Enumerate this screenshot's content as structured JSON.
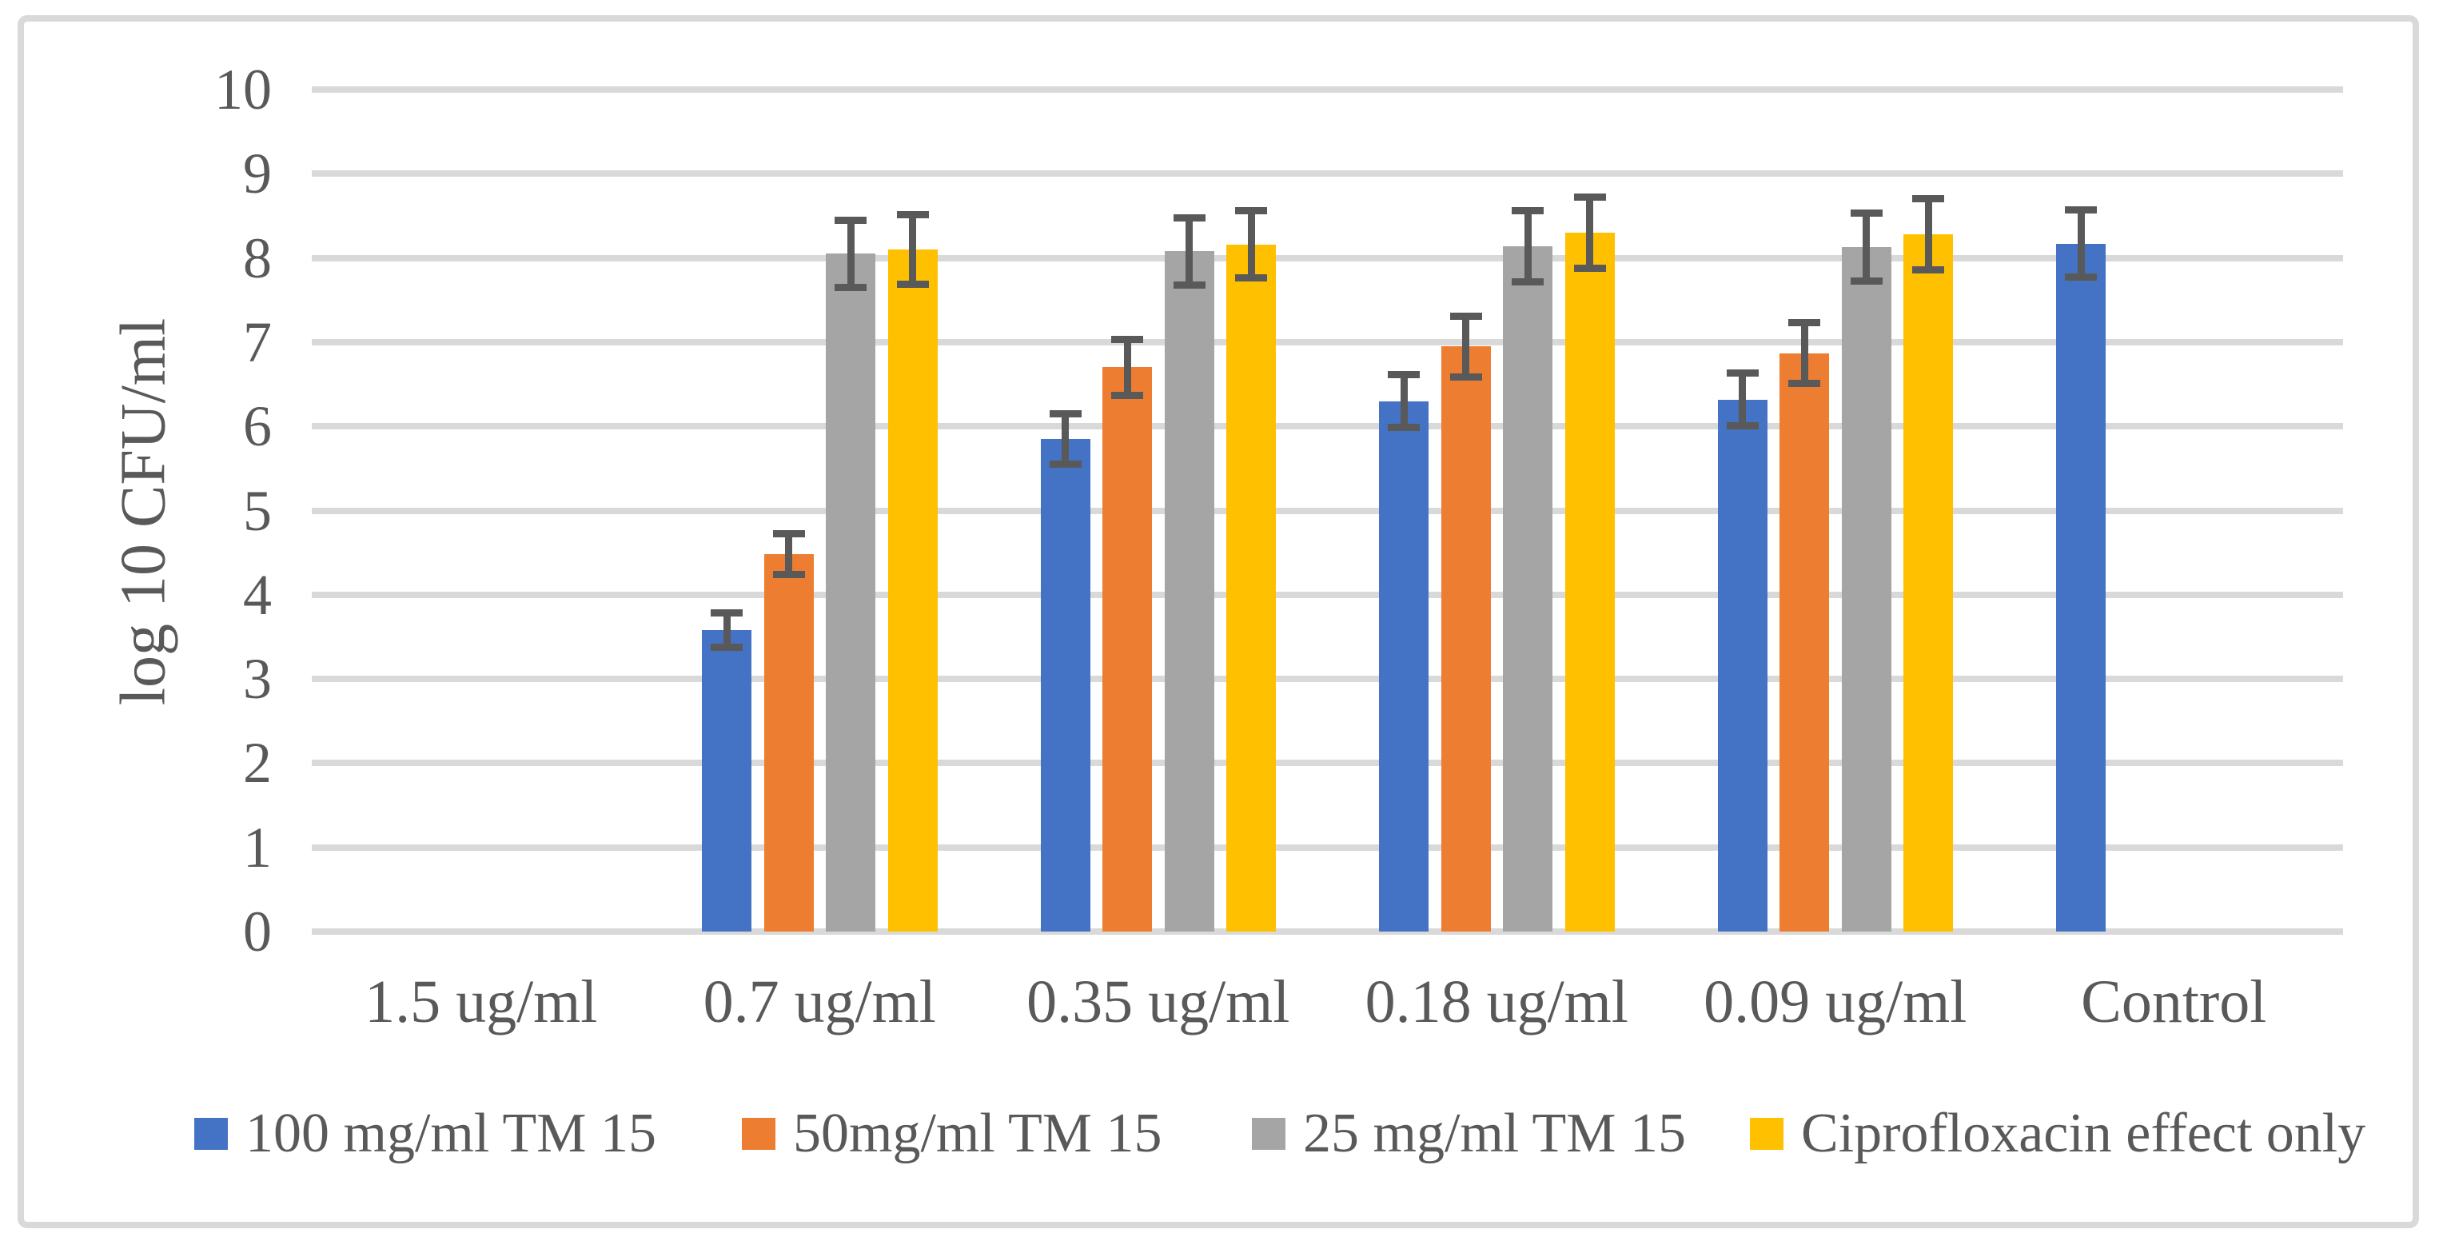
{
  "chart_data": {
    "type": "bar",
    "title": "",
    "ylabel": "log 10 CFU/ml",
    "xlabel": "",
    "ylim": [
      0,
      10
    ],
    "yticks": [
      0,
      1,
      2,
      3,
      4,
      5,
      6,
      7,
      8,
      9,
      10
    ],
    "grid": true,
    "legend_position": "bottom",
    "categories": [
      "1.5 ug/ml",
      "0.7 ug/ml",
      "0.35 ug/ml",
      "0.18 ug/ml",
      "0.09 ug/ml",
      "Control"
    ],
    "series": [
      {
        "name": "100 mg/ml TM 15",
        "color": "#4472C4",
        "values": [
          0,
          3.58,
          5.85,
          6.3,
          6.32,
          8.17
        ],
        "errors": [
          0,
          0.2,
          0.3,
          0.31,
          0.31,
          0.4
        ]
      },
      {
        "name": "50mg/ml TM 15",
        "color": "#ED7D31",
        "values": [
          0,
          4.48,
          6.7,
          6.95,
          6.87,
          0
        ],
        "errors": [
          0,
          0.24,
          0.33,
          0.36,
          0.36,
          0
        ]
      },
      {
        "name": "25 mg/ml TM 15",
        "color": "#A5A5A5",
        "values": [
          0,
          8.05,
          8.08,
          8.14,
          8.13,
          0
        ],
        "errors": [
          0,
          0.4,
          0.4,
          0.42,
          0.4,
          0
        ]
      },
      {
        "name": "Ciprofloxacin effect only",
        "color": "#FFC000",
        "values": [
          0,
          8.1,
          8.16,
          8.3,
          8.28,
          0
        ],
        "errors": [
          0,
          0.41,
          0.4,
          0.42,
          0.42,
          0
        ]
      }
    ],
    "error_bars": true,
    "colors": {
      "gridline": "#D9D9D9",
      "text": "#595959",
      "error_bar": "#595959",
      "border": "#D9D9D9",
      "background": "#FFFFFF"
    }
  }
}
